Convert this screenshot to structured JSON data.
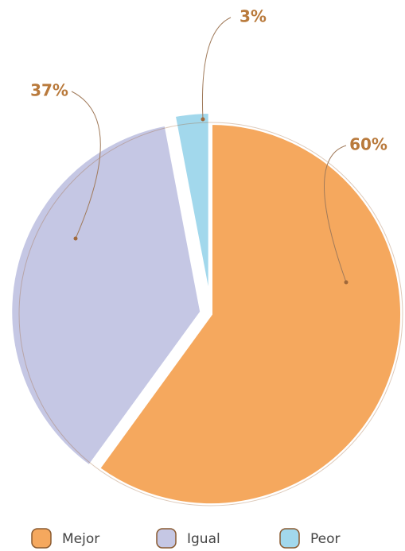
{
  "chart_data": {
    "type": "pie",
    "categories": [
      "Mejor",
      "Igual",
      "Peor"
    ],
    "values": [
      60,
      37,
      3
    ],
    "value_labels": [
      "60%",
      "37%",
      "3%"
    ],
    "colors": [
      "#f5a85e",
      "#c5c7e4",
      "#a2d8ec"
    ]
  }
}
